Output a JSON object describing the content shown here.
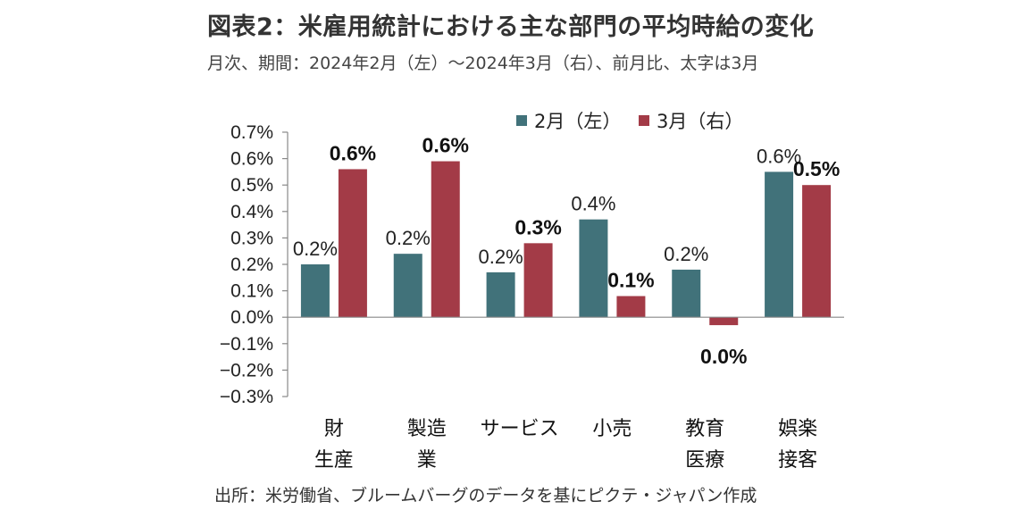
{
  "title": "図表2：米雇用統計における主な部門の平均時給の変化",
  "subtitle": "月次、期間：2024年2月（左）～2024年3月（右）、前月比、太字は3月",
  "source": "出所：米労働省、ブルームバーグのデータを基にピクテ・ジャパン作成",
  "colors": {
    "feb": "#41727A",
    "mar": "#A33B47"
  },
  "chart_data": {
    "type": "bar",
    "title": "",
    "xlabel": "",
    "ylabel": "",
    "ylim": [
      -0.3,
      0.7
    ],
    "yticks": [
      "0.7%",
      "0.6%",
      "0.5%",
      "0.4%",
      "0.3%",
      "0.2%",
      "0.1%",
      "0.0%",
      "−0.1%",
      "−0.2%",
      "−0.3%"
    ],
    "ytick_values": [
      0.7,
      0.6,
      0.5,
      0.4,
      0.3,
      0.2,
      0.1,
      0.0,
      -0.1,
      -0.2,
      -0.3
    ],
    "legend_position": "top-right",
    "categories": [
      [
        "財",
        "生産"
      ],
      [
        "製造",
        "業"
      ],
      [
        "サービス"
      ],
      [
        "小売"
      ],
      [
        "教育",
        "医療"
      ],
      [
        "娯楽",
        "接客"
      ]
    ],
    "series": [
      {
        "name": "2月（左）",
        "values": [
          0.2,
          0.24,
          0.17,
          0.37,
          0.18,
          0.55
        ],
        "labels": [
          "0.2%",
          "0.2%",
          "0.2%",
          "0.4%",
          "0.2%",
          "0.6%"
        ]
      },
      {
        "name": "3月（右）",
        "values": [
          0.56,
          0.59,
          0.28,
          0.08,
          -0.03,
          0.5
        ],
        "labels": [
          "0.6%",
          "0.6%",
          "0.3%",
          "0.1%",
          "0.0%",
          "0.5%"
        ]
      }
    ]
  }
}
